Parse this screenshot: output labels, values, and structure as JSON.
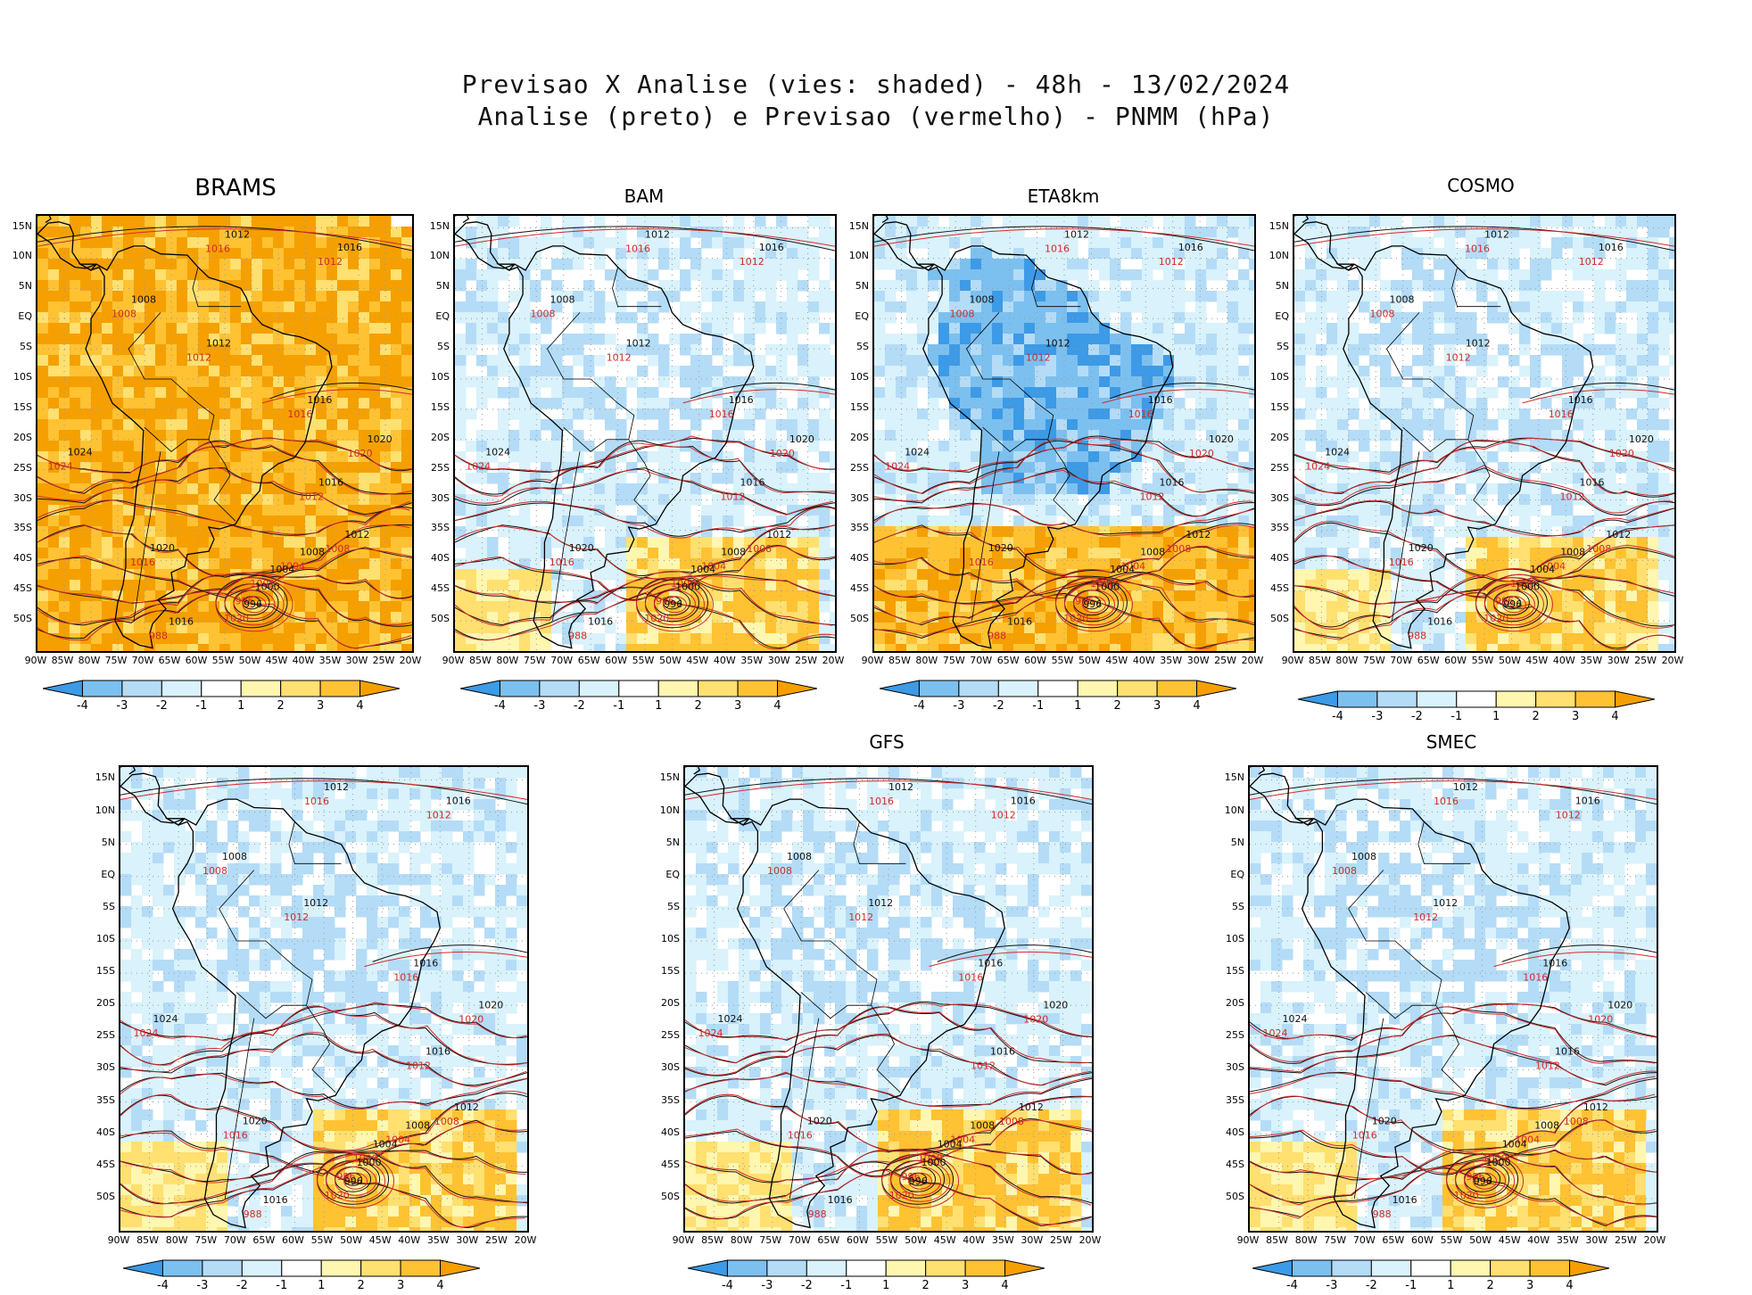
{
  "title": {
    "line1": "Previsao X Analise (vies: shaded) - 48h - 13/02/2024",
    "line2": "Analise (preto) e Previsao (vermelho) - PNMM (hPa)"
  },
  "axes": {
    "lat_labels": [
      "15N",
      "10N",
      "5N",
      "EQ",
      "5S",
      "10S",
      "15S",
      "20S",
      "25S",
      "30S",
      "35S",
      "40S",
      "45S",
      "50S"
    ],
    "lon_labels": [
      "90W",
      "85W",
      "80W",
      "75W",
      "70W",
      "65W",
      "60W",
      "55W",
      "50W",
      "45W",
      "40W",
      "35W",
      "30W",
      "25W",
      "20W"
    ]
  },
  "colorbar": {
    "labels": [
      "-4",
      "-3",
      "-2",
      "-1",
      "1",
      "2",
      "3",
      "4"
    ],
    "colors": [
      "#3d9ae6",
      "#7cc0f0",
      "#b4dcf7",
      "#d9f2fb",
      "#ffffff",
      "#fff6b0",
      "#ffe070",
      "#ffc233",
      "#f5a000"
    ]
  },
  "colors": {
    "analysis_contour": "#111111",
    "forecast_contour": "#d22a2a",
    "coast": "#000000"
  },
  "panels": [
    {
      "id": "brams",
      "title": "BRAMS",
      "bias": "warm"
    },
    {
      "id": "bam",
      "title": "BAM",
      "bias": "mixed"
    },
    {
      "id": "eta8km",
      "title": "ETA8km",
      "bias": "cold"
    },
    {
      "id": "cosmo",
      "title": "COSMO",
      "bias": "mixed"
    },
    {
      "id": "ens",
      "title": "",
      "bias": "mixed"
    },
    {
      "id": "gfs",
      "title": "GFS",
      "bias": "mixed"
    },
    {
      "id": "smec",
      "title": "SMEC",
      "bias": "mixed"
    }
  ],
  "contour_labels": {
    "analysis": [
      "1012",
      "1016",
      "1008",
      "1012",
      "1016",
      "1020",
      "1024",
      "1016",
      "1012",
      "1008",
      "1004",
      "1000",
      "996",
      "1020",
      "1016"
    ],
    "forecast": [
      "1016",
      "1012",
      "1008",
      "1012",
      "1016",
      "1020",
      "1024",
      "1012",
      "1008",
      "1004",
      "1000",
      "996",
      "1020",
      "1016",
      "988"
    ]
  }
}
